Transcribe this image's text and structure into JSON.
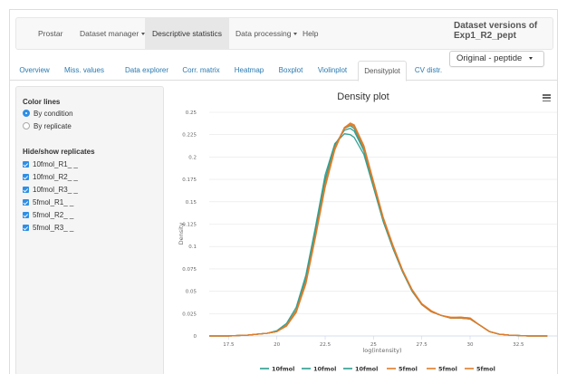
{
  "navbar": {
    "items": [
      {
        "label": "Prostar",
        "dropdown": false,
        "active": false
      },
      {
        "label": "Dataset manager",
        "dropdown": true,
        "active": false
      },
      {
        "label": "Descriptive statistics",
        "dropdown": false,
        "active": true
      },
      {
        "label": "Data processing",
        "dropdown": true,
        "active": false
      },
      {
        "label": "Help",
        "dropdown": false,
        "active": false
      }
    ],
    "dataset_title": "Dataset versions of Exp1_R2_pept",
    "dataset_select": "Original - peptide"
  },
  "tabs": [
    {
      "label": "Overview"
    },
    {
      "label": "Miss. values"
    },
    {
      "label": "Data explorer"
    },
    {
      "label": "Corr. matrix"
    },
    {
      "label": "Heatmap"
    },
    {
      "label": "Boxplot"
    },
    {
      "label": "Violinplot"
    },
    {
      "label": "Densityplot",
      "active": true
    },
    {
      "label": "CV distr."
    }
  ],
  "sidebar": {
    "color_lines_heading": "Color lines",
    "color_options": [
      {
        "label": "By condition",
        "selected": true
      },
      {
        "label": "By replicate",
        "selected": false
      }
    ],
    "replicates_heading": "Hide/show replicates",
    "replicates": [
      {
        "label": "10fmol_R1_ _",
        "checked": true
      },
      {
        "label": "10fmol_R2_ _",
        "checked": true
      },
      {
        "label": "10fmol_R3_ _",
        "checked": true
      },
      {
        "label": "5fmol_R1_ _",
        "checked": true
      },
      {
        "label": "5fmol_R2_ _",
        "checked": true
      },
      {
        "label": "5fmol_R3_ _",
        "checked": true
      }
    ]
  },
  "icons": {
    "chart_menu": "hamburger-menu-icon",
    "radio": "radio-button",
    "checkbox": "checkbox-checked-icon"
  },
  "colors": {
    "accent": "#2d8fe6",
    "series_10fmol": "#2a9d8f",
    "series_5fmol": "#e07b28"
  },
  "chart_data": {
    "type": "line",
    "title": "Density plot",
    "xlabel": "log(intensity)",
    "ylabel": "Density",
    "xlim": [
      16.5,
      34.5
    ],
    "ylim": [
      0,
      0.25
    ],
    "xticks": [
      17.5,
      20,
      22.5,
      25,
      27.5,
      30,
      32.5
    ],
    "yticks": [
      0,
      0.025,
      0.05,
      0.075,
      0.1,
      0.125,
      0.15,
      0.175,
      0.2,
      0.225,
      0.25
    ],
    "xtick_labels": [
      "17.5",
      "20",
      "22.5",
      "25",
      "27.5",
      "30",
      "32.5"
    ],
    "ytick_labels": [
      "0",
      "0.025",
      "0.05",
      "0.075",
      "0.1",
      "0.125",
      "0.15",
      "0.175",
      "0.2",
      "0.225",
      "0.25"
    ],
    "legend_position": "bottom",
    "grid": "horizontal",
    "x": [
      16.5,
      17.5,
      18.5,
      19.5,
      20.0,
      20.5,
      21.0,
      21.5,
      22.0,
      22.5,
      23.0,
      23.5,
      23.8,
      24.0,
      24.5,
      25.0,
      25.5,
      26.0,
      26.5,
      27.0,
      27.5,
      28.0,
      28.5,
      29.0,
      29.5,
      30.0,
      30.5,
      31.0,
      31.5,
      32.0,
      33.0,
      34.0
    ],
    "series": [
      {
        "name": "10fmol",
        "color": "#2a9d8f",
        "values": [
          0,
          0,
          0.001,
          0.003,
          0.006,
          0.014,
          0.032,
          0.068,
          0.122,
          0.18,
          0.215,
          0.226,
          0.225,
          0.222,
          0.203,
          0.166,
          0.128,
          0.098,
          0.072,
          0.05,
          0.035,
          0.027,
          0.023,
          0.02,
          0.02,
          0.019,
          0.012,
          0.005,
          0.002,
          0.001,
          0,
          0
        ]
      },
      {
        "name": "10fmol",
        "color": "#2a9d8f",
        "values": [
          0,
          0,
          0.001,
          0.003,
          0.005,
          0.012,
          0.029,
          0.064,
          0.117,
          0.175,
          0.214,
          0.23,
          0.232,
          0.229,
          0.207,
          0.168,
          0.129,
          0.099,
          0.072,
          0.05,
          0.035,
          0.027,
          0.023,
          0.02,
          0.021,
          0.019,
          0.012,
          0.005,
          0.002,
          0.001,
          0,
          0
        ]
      },
      {
        "name": "10fmol",
        "color": "#2a9d8f",
        "values": [
          0,
          0,
          0.001,
          0.003,
          0.005,
          0.012,
          0.028,
          0.062,
          0.115,
          0.172,
          0.212,
          0.232,
          0.235,
          0.232,
          0.209,
          0.17,
          0.131,
          0.1,
          0.073,
          0.051,
          0.035,
          0.027,
          0.023,
          0.02,
          0.02,
          0.019,
          0.012,
          0.005,
          0.002,
          0.001,
          0,
          0
        ]
      },
      {
        "name": "5fmol",
        "color": "#e07b28",
        "values": [
          0,
          0,
          0.001,
          0.003,
          0.005,
          0.011,
          0.027,
          0.06,
          0.112,
          0.168,
          0.21,
          0.232,
          0.236,
          0.234,
          0.212,
          0.172,
          0.132,
          0.101,
          0.074,
          0.051,
          0.036,
          0.028,
          0.023,
          0.02,
          0.021,
          0.02,
          0.012,
          0.005,
          0.002,
          0.001,
          0,
          0
        ]
      },
      {
        "name": "5fmol",
        "color": "#e07b28",
        "values": [
          0,
          0,
          0.001,
          0.003,
          0.005,
          0.011,
          0.026,
          0.058,
          0.11,
          0.166,
          0.208,
          0.233,
          0.238,
          0.236,
          0.213,
          0.173,
          0.133,
          0.102,
          0.074,
          0.052,
          0.036,
          0.028,
          0.023,
          0.021,
          0.021,
          0.02,
          0.012,
          0.005,
          0.002,
          0.001,
          0,
          0
        ]
      },
      {
        "name": "5fmol",
        "color": "#e07b28",
        "values": [
          0,
          0,
          0.001,
          0.003,
          0.005,
          0.012,
          0.028,
          0.061,
          0.113,
          0.17,
          0.211,
          0.233,
          0.237,
          0.235,
          0.21,
          0.17,
          0.131,
          0.1,
          0.073,
          0.051,
          0.035,
          0.027,
          0.023,
          0.02,
          0.02,
          0.019,
          0.012,
          0.005,
          0.002,
          0.001,
          0,
          0
        ]
      }
    ]
  }
}
